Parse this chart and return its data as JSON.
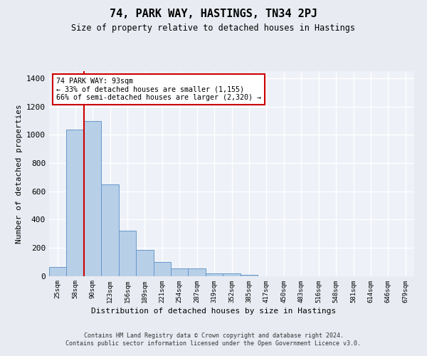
{
  "title": "74, PARK WAY, HASTINGS, TN34 2PJ",
  "subtitle": "Size of property relative to detached houses in Hastings",
  "xlabel": "Distribution of detached houses by size in Hastings",
  "ylabel": "Number of detached properties",
  "bar_color": "#b8cfe8",
  "bar_edge_color": "#6699cc",
  "background_color": "#e8ecf2",
  "plot_background": "#eef1f7",
  "grid_color": "#ffffff",
  "annotation_line_color": "#cc0000",
  "annotation_box_color": "#cc0000",
  "annotation_text": "74 PARK WAY: 93sqm\n← 33% of detached houses are smaller (1,155)\n66% of semi-detached houses are larger (2,320) →",
  "footer_text": "Contains HM Land Registry data © Crown copyright and database right 2024.\nContains public sector information licensed under the Open Government Licence v3.0.",
  "categories": [
    "25sqm",
    "58sqm",
    "90sqm",
    "123sqm",
    "156sqm",
    "189sqm",
    "221sqm",
    "254sqm",
    "287sqm",
    "319sqm",
    "352sqm",
    "385sqm",
    "417sqm",
    "450sqm",
    "483sqm",
    "516sqm",
    "548sqm",
    "581sqm",
    "614sqm",
    "646sqm",
    "679sqm"
  ],
  "values": [
    65,
    1035,
    1095,
    650,
    320,
    185,
    100,
    55,
    55,
    20,
    20,
    10,
    0,
    0,
    0,
    0,
    0,
    0,
    0,
    0,
    0
  ],
  "property_line_x": 2,
  "ylim": [
    0,
    1450
  ],
  "yticks": [
    0,
    200,
    400,
    600,
    800,
    1000,
    1200,
    1400
  ]
}
